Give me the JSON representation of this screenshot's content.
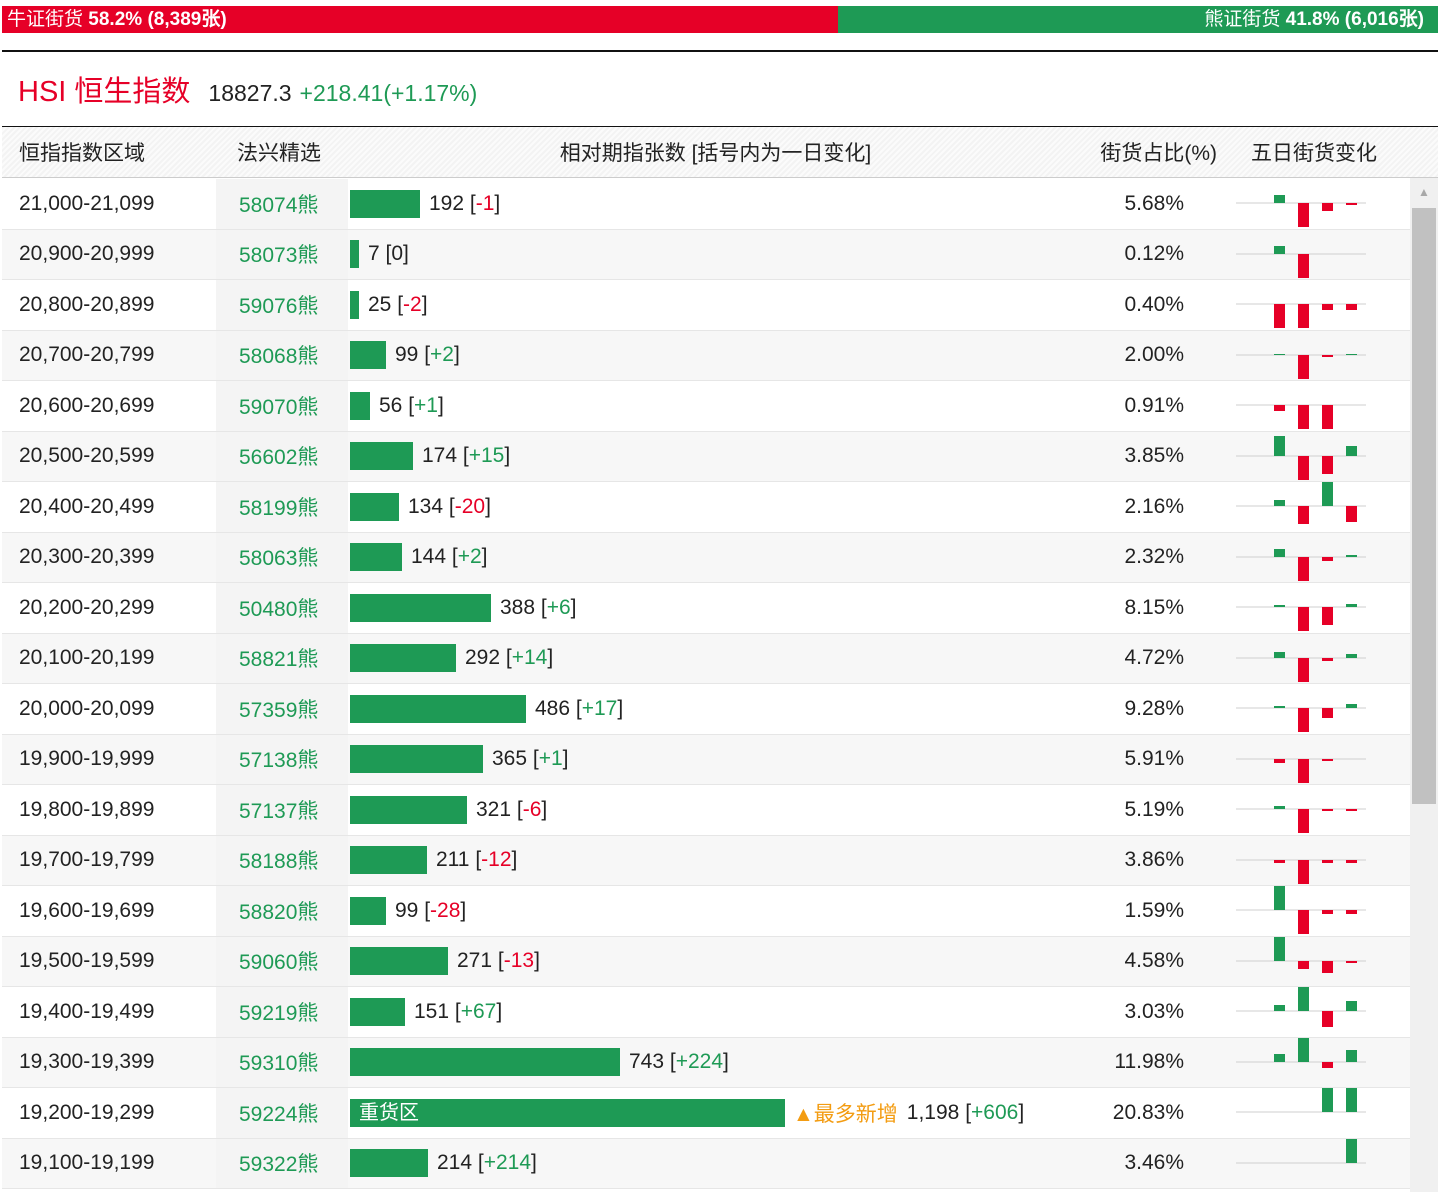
{
  "ratio": {
    "bull_label": "牛证街货",
    "bull_pct": "58.2%",
    "bull_count": "(8,389张)",
    "bull_share": 58.2,
    "bear_label": "熊证街货",
    "bear_pct": "41.8%",
    "bear_count": "(6,016张)",
    "colors": {
      "bull": "#e60027",
      "bear": "#1e9a55"
    }
  },
  "index": {
    "name": "HSI 恒生指数",
    "value": "18827.3",
    "change": "+218.41(+1.17%)"
  },
  "table": {
    "headers": {
      "range": "恒指指数区域",
      "pick": "法兴精选",
      "count": "相对期指张数 [括号内为一日变化]",
      "pct": "街货占比(%)",
      "five_day": "五日街货变化"
    },
    "rows": [
      {
        "range": "21,000-21,099",
        "pick": "58074熊",
        "count": 192,
        "count_text": "192",
        "change": "-1",
        "pct": "5.68%",
        "five": [
          4,
          -12,
          -4,
          -1
        ]
      },
      {
        "range": "20,900-20,999",
        "pick": "58073熊",
        "count": 7,
        "count_text": "7",
        "change": "0",
        "pct": "0.12%",
        "five": [
          4,
          -12,
          0,
          0
        ]
      },
      {
        "range": "20,800-20,899",
        "pick": "59076熊",
        "count": 25,
        "count_text": "25",
        "change": "-2",
        "pct": "0.40%",
        "five": [
          -12,
          -12,
          -3,
          -3
        ]
      },
      {
        "range": "20,700-20,799",
        "pick": "58068熊",
        "count": 99,
        "count_text": "99",
        "change": "+2",
        "pct": "2.00%",
        "five": [
          0.5,
          -12,
          -1,
          0.5
        ]
      },
      {
        "range": "20,600-20,699",
        "pick": "59070熊",
        "count": 56,
        "count_text": "56",
        "change": "+1",
        "pct": "0.91%",
        "five": [
          -3,
          -12,
          -12,
          0
        ]
      },
      {
        "range": "20,500-20,599",
        "pick": "56602熊",
        "count": 174,
        "count_text": "174",
        "change": "+15",
        "pct": "3.85%",
        "five": [
          10,
          -12,
          -9,
          5
        ]
      },
      {
        "range": "20,400-20,499",
        "pick": "58199熊",
        "count": 134,
        "count_text": "134",
        "change": "-20",
        "pct": "2.16%",
        "five": [
          3,
          -9,
          12,
          -8
        ]
      },
      {
        "range": "20,300-20,399",
        "pick": "58063熊",
        "count": 144,
        "count_text": "144",
        "change": "+2",
        "pct": "2.32%",
        "five": [
          4,
          -12,
          -2,
          1
        ]
      },
      {
        "range": "20,200-20,299",
        "pick": "50480熊",
        "count": 388,
        "count_text": "388",
        "change": "+6",
        "pct": "8.15%",
        "five": [
          1,
          -12,
          -9,
          1.5
        ]
      },
      {
        "range": "20,100-20,199",
        "pick": "58821熊",
        "count": 292,
        "count_text": "292",
        "change": "+14",
        "pct": "4.72%",
        "five": [
          3,
          -12,
          -1.5,
          2
        ]
      },
      {
        "range": "20,000-20,099",
        "pick": "57359熊",
        "count": 486,
        "count_text": "486",
        "change": "+17",
        "pct": "9.28%",
        "five": [
          1,
          -12,
          -5,
          2
        ]
      },
      {
        "range": "19,900-19,999",
        "pick": "57138熊",
        "count": 365,
        "count_text": "365",
        "change": "+1",
        "pct": "5.91%",
        "five": [
          -2,
          -12,
          -1,
          0
        ]
      },
      {
        "range": "19,800-19,899",
        "pick": "57137熊",
        "count": 321,
        "count_text": "321",
        "change": "-6",
        "pct": "5.19%",
        "five": [
          1.5,
          -12,
          -1,
          -1
        ]
      },
      {
        "range": "19,700-19,799",
        "pick": "58188熊",
        "count": 211,
        "count_text": "211",
        "change": "-12",
        "pct": "3.86%",
        "five": [
          -1.5,
          -12,
          -1.5,
          -1.5
        ]
      },
      {
        "range": "19,600-19,699",
        "pick": "58820熊",
        "count": 99,
        "count_text": "99",
        "change": "-28",
        "pct": "1.59%",
        "five": [
          12,
          -12,
          -2,
          -2
        ]
      },
      {
        "range": "19,500-19,599",
        "pick": "59060熊",
        "count": 271,
        "count_text": "271",
        "change": "-13",
        "pct": "4.58%",
        "five": [
          12,
          -4,
          -6,
          -1
        ]
      },
      {
        "range": "19,400-19,499",
        "pick": "59219熊",
        "count": 151,
        "count_text": "151",
        "change": "+67",
        "pct": "3.03%",
        "five": [
          3,
          12,
          -8,
          5
        ]
      },
      {
        "range": "19,300-19,399",
        "pick": "59310熊",
        "count": 743,
        "count_text": "743",
        "change": "+224",
        "pct": "11.98%",
        "five": [
          4,
          12,
          -3,
          6
        ]
      },
      {
        "range": "19,200-19,299",
        "pick": "59224熊",
        "count": 1198,
        "count_text": "1,198",
        "change": "+606",
        "pct": "20.83%",
        "five": [
          0,
          0,
          12,
          12
        ],
        "heavy_label": "重货区",
        "hot_label": "▲最多新增"
      },
      {
        "range": "19,100-19,199",
        "pick": "59322熊",
        "count": 214,
        "count_text": "214",
        "change": "+214",
        "pct": "3.46%",
        "five": [
          0,
          0,
          0,
          12
        ]
      }
    ]
  }
}
